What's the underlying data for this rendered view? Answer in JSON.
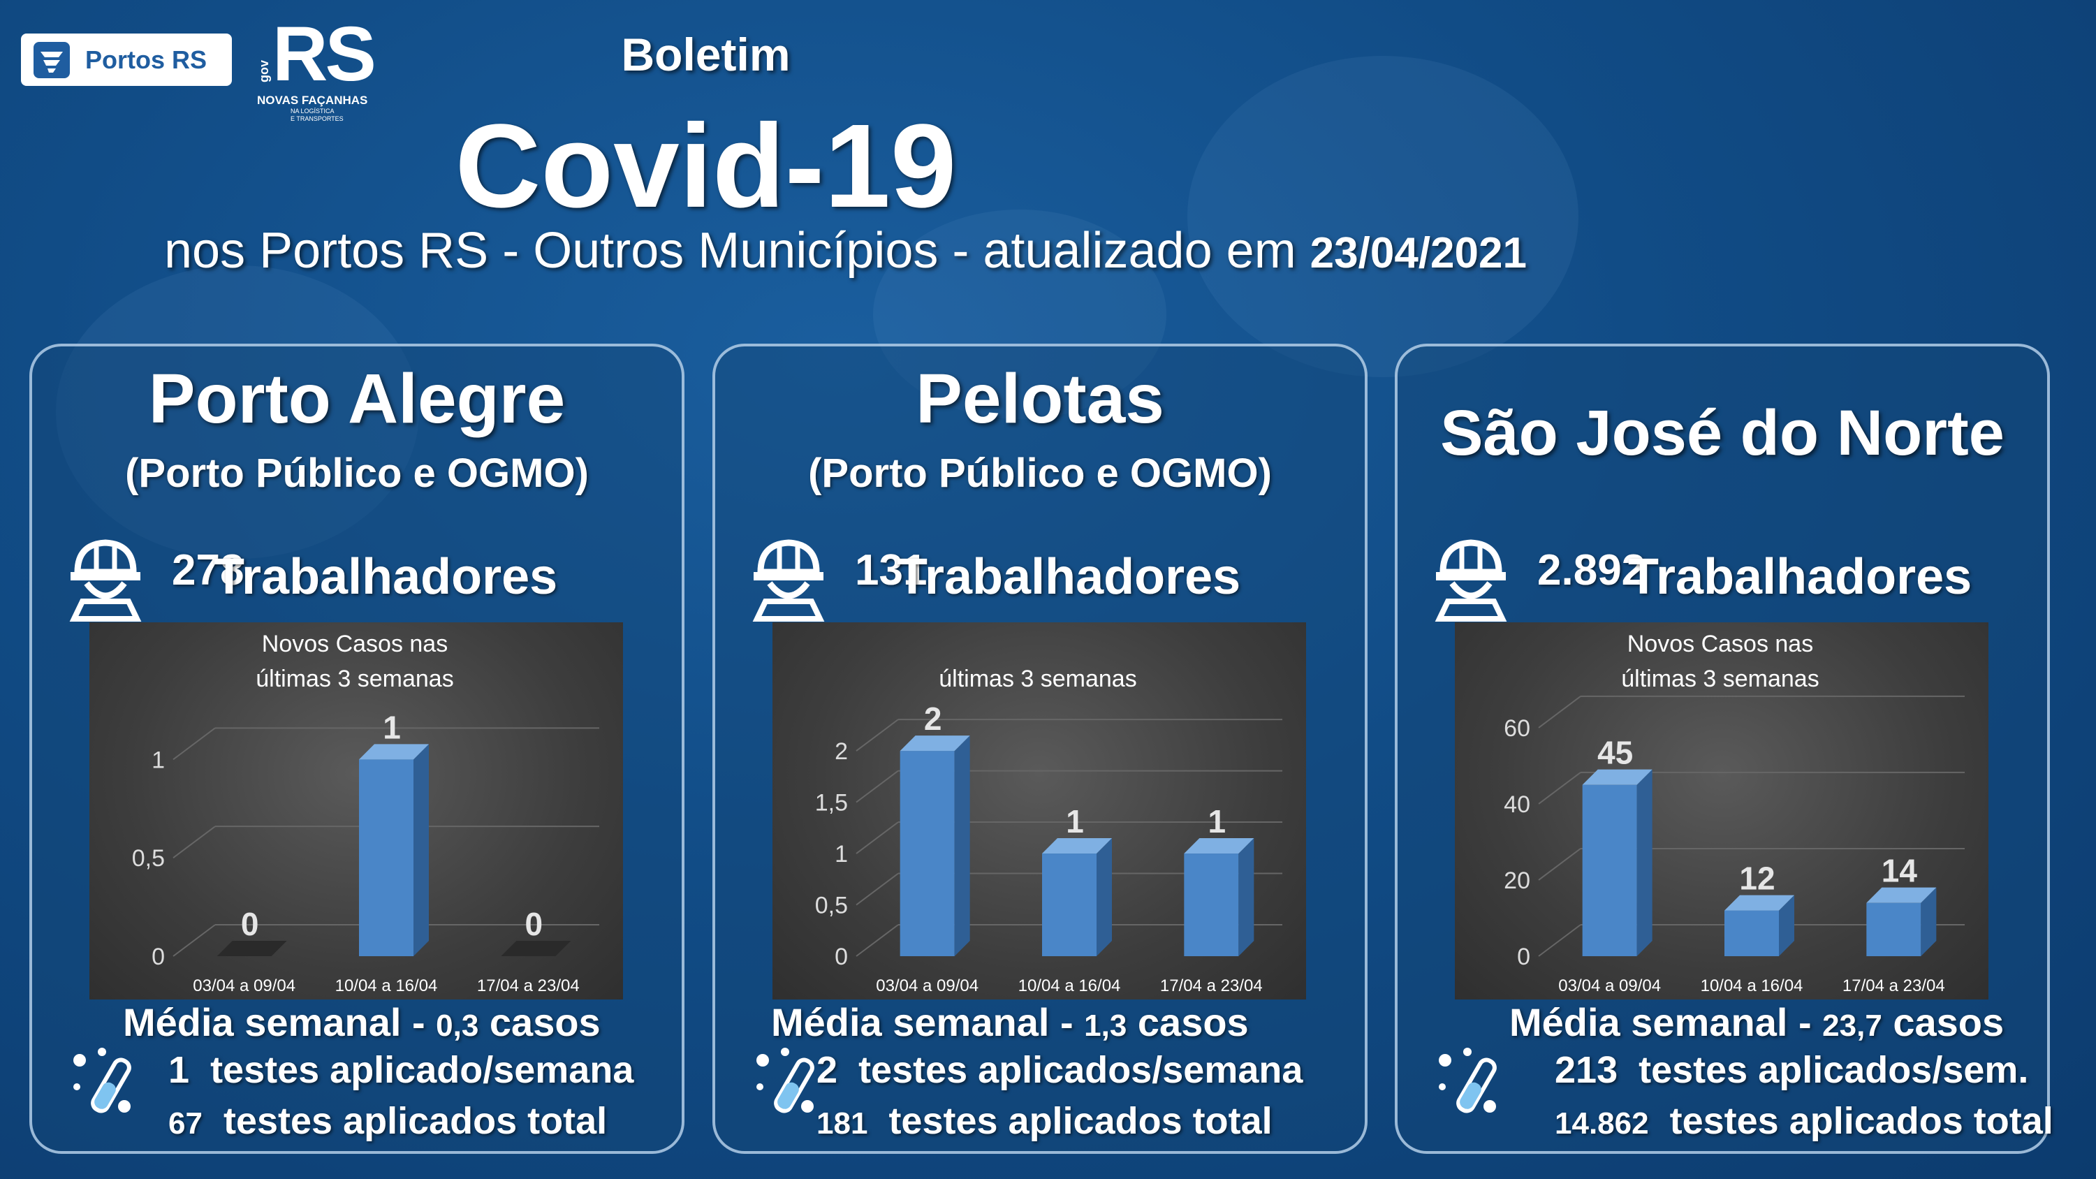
{
  "header": {
    "logo_text": "Portos RS",
    "rs_logo": {
      "text": "RS",
      "sub": "NOVAS FAÇANHAS",
      "tiny1": "NA LOGÍSTICA",
      "tiny2": "E TRANSPORTES",
      "gov": "gov"
    },
    "line1": "Boletim",
    "line2": "Covid-19",
    "line3": "nos Portos RS - Outros Municípios - atualizado em",
    "date": "23/04/2021"
  },
  "icons": {
    "worker": "worker-helmet-icon",
    "test": "test-tube-virus-icon"
  },
  "colors": {
    "bar": "#4a86c8",
    "panel_border": "#bed7f0",
    "background": "#114c86"
  },
  "panels": [
    {
      "city": "Porto Alegre",
      "subtitle": "(Porto Público e OGMO)",
      "workers_count": "278",
      "workers_label": "Trabalhadores",
      "avg_label": "Média semanal -",
      "avg_value": "0,3",
      "avg_unit": "casos",
      "tests_week": "1",
      "tests_week_label": "testes aplicado/semana",
      "tests_total": "67",
      "tests_total_label": "testes aplicados total"
    },
    {
      "city": "Pelotas",
      "subtitle": "(Porto Público e OGMO)",
      "workers_count": "131",
      "workers_label": "Trabalhadores",
      "avg_label": "Média semanal -",
      "avg_value": "1,3",
      "avg_unit": "casos",
      "tests_week": "2",
      "tests_week_label": "testes aplicados/semana",
      "tests_total": "181",
      "tests_total_label": "testes aplicados total"
    },
    {
      "city": "São José do Norte",
      "subtitle": "",
      "workers_count": "2.892",
      "workers_label": "Trabalhadores",
      "avg_label": "Média semanal -",
      "avg_value": "23,7",
      "avg_unit": "casos",
      "tests_week": "213",
      "tests_week_label": "testes aplicados/sem.",
      "tests_total": "14.862",
      "tests_total_label": "testes aplicados total"
    }
  ],
  "chart_data": [
    {
      "type": "bar",
      "title": "Novos Casos nas últimas 3 semanas",
      "title_lines": [
        "Novos Casos nas",
        "últimas 3 semanas"
      ],
      "categories": [
        "03/04 a 09/04",
        "10/04 a 16/04",
        "17/04 a 23/04"
      ],
      "values": [
        0,
        1,
        0
      ],
      "value_labels": [
        "0",
        "1",
        "0"
      ],
      "yticks": [
        "0",
        "0,5",
        "1"
      ],
      "ytick_values": [
        0,
        0.5,
        1
      ],
      "ylim": [
        0,
        1.2
      ],
      "grid": true
    },
    {
      "type": "bar",
      "title": "últimas 3 semanas",
      "title_lines": [
        "",
        "últimas 3 semanas"
      ],
      "categories": [
        "03/04 a 09/04",
        "10/04 a 16/04",
        "17/04 a 23/04"
      ],
      "values": [
        2,
        1,
        1
      ],
      "value_labels": [
        "2",
        "1",
        "1"
      ],
      "yticks": [
        "0",
        "0,5",
        "1",
        "1,5",
        "2"
      ],
      "ytick_values": [
        0,
        0.5,
        1,
        1.5,
        2
      ],
      "ylim": [
        0,
        2.3
      ],
      "grid": true
    },
    {
      "type": "bar",
      "title": "Novos Casos nas últimas 3 semanas",
      "title_lines": [
        "Novos Casos nas",
        "últimas 3 semanas"
      ],
      "categories": [
        "03/04 a 09/04",
        "10/04 a 16/04",
        "17/04 a 23/04"
      ],
      "values": [
        45,
        12,
        14
      ],
      "value_labels": [
        "45",
        "12",
        "14"
      ],
      "yticks": [
        "0",
        "20",
        "40",
        "60"
      ],
      "ytick_values": [
        0,
        20,
        40,
        60
      ],
      "ylim": [
        0,
        62
      ],
      "grid": true
    }
  ]
}
